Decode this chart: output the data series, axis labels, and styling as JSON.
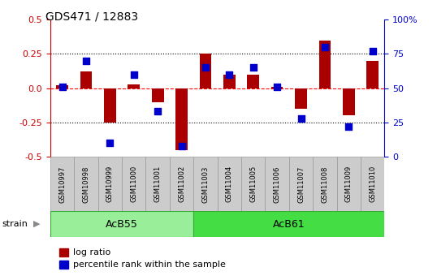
{
  "title": "GDS471 / 12883",
  "samples": [
    "GSM10997",
    "GSM10998",
    "GSM10999",
    "GSM11000",
    "GSM11001",
    "GSM11002",
    "GSM11003",
    "GSM11004",
    "GSM11005",
    "GSM11006",
    "GSM11007",
    "GSM11008",
    "GSM11009",
    "GSM11010"
  ],
  "log_ratio": [
    0.02,
    0.12,
    -0.25,
    0.03,
    -0.1,
    -0.45,
    0.25,
    0.1,
    0.1,
    0.01,
    -0.15,
    0.35,
    -0.2,
    0.2
  ],
  "percentile": [
    51,
    70,
    10,
    60,
    33,
    8,
    65,
    60,
    65,
    51,
    28,
    80,
    22,
    77
  ],
  "groups": [
    {
      "label": "AcB55",
      "start": 0,
      "end": 5,
      "color": "#99ee99"
    },
    {
      "label": "AcB61",
      "start": 6,
      "end": 13,
      "color": "#44dd44"
    }
  ],
  "ylim_left": [
    -0.5,
    0.5
  ],
  "ylim_right": [
    0,
    100
  ],
  "yticks_left": [
    -0.5,
    -0.25,
    0.0,
    0.25,
    0.5
  ],
  "yticks_right": [
    0,
    25,
    50,
    75,
    100
  ],
  "hlines": [
    0.25,
    -0.25
  ],
  "hline_zero": 0.0,
  "bar_color": "#aa0000",
  "dot_color": "#0000cc",
  "sample_box_color": "#cccccc",
  "sample_box_edge": "#999999",
  "group_edge_color": "#33aa33",
  "left_axis_color": "#cc0000",
  "right_axis_color": "#0000cc",
  "bar_width": 0.5,
  "dot_size": 28,
  "legend_bar_label": "log ratio",
  "legend_dot_label": "percentile rank within the sample",
  "strain_label": "strain"
}
